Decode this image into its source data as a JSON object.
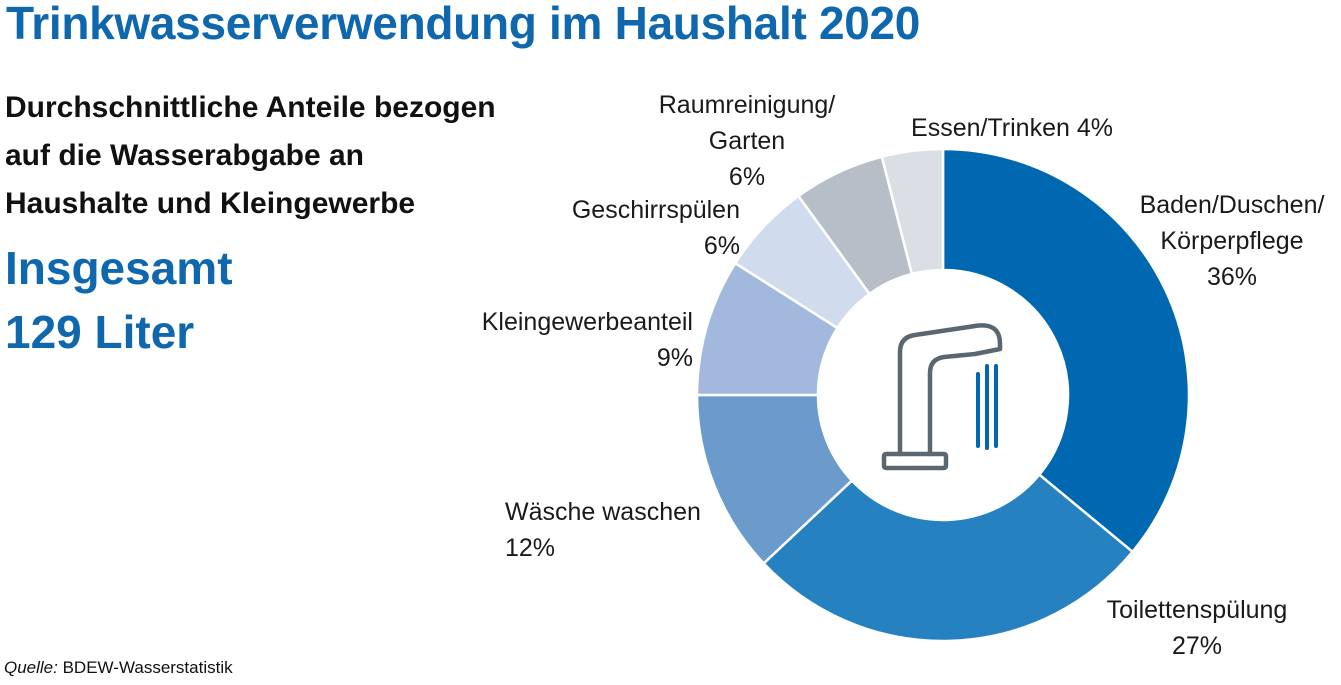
{
  "header": {
    "title": "Trinkwasserverwendung im Haushalt 2020",
    "subtitle_lines": [
      "Durchschnittliche Anteile bezogen",
      "auf die Wasserabgabe an",
      "Haushalte und Kleingewerbe"
    ],
    "total_lines": [
      "Insgesamt",
      "129 Liter"
    ]
  },
  "footer": {
    "source_label": "Quelle:",
    "source_value": " BDEW-Wasserstatistik"
  },
  "center_icon": "water-tap-icon",
  "chart_data": {
    "type": "pie",
    "style": "donut",
    "unit": "%",
    "start_angle_deg": 0,
    "direction": "clockwise",
    "slices": [
      {
        "label_lines": [
          "Baden/Duschen/",
          "Körperpflege",
          "36%"
        ],
        "value": 36,
        "color": "#0067b1"
      },
      {
        "label_lines": [
          "Toilettenspülung",
          "27%"
        ],
        "value": 27,
        "color": "#2681c0"
      },
      {
        "label_lines": [
          "Wäsche waschen",
          "12%"
        ],
        "value": 12,
        "color": "#6b9bcb"
      },
      {
        "label_lines": [
          "Kleingewerbeanteil",
          "9%"
        ],
        "value": 9,
        "color": "#a2b9dd"
      },
      {
        "label_lines": [
          "Geschirrspülen",
          "6%"
        ],
        "value": 6,
        "color": "#d1dbee"
      },
      {
        "label_lines": [
          "Raumreinigung/",
          "Garten",
          "6%"
        ],
        "value": 6,
        "color": "#b6bfc8"
      },
      {
        "label_lines": [
          "Essen/Trinken 4%"
        ],
        "value": 4,
        "color": "#d9dfe5"
      }
    ],
    "colors": {
      "icon_stroke": "#5b6770",
      "icon_water": "#0067b1",
      "slice_border": "#ffffff"
    }
  }
}
